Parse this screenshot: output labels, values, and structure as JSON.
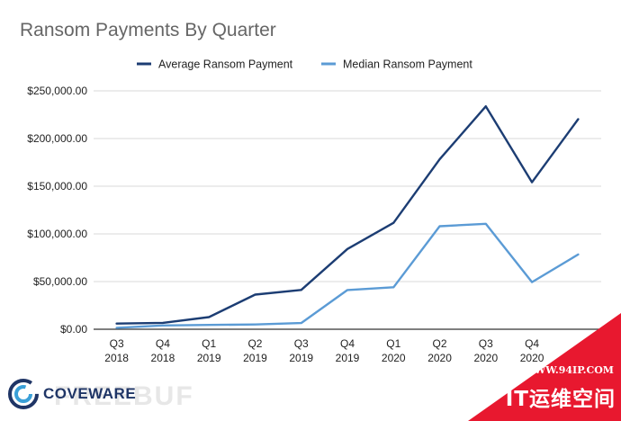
{
  "chart_data": {
    "type": "line",
    "title": "Ransom Payments By Quarter",
    "xlabel": "",
    "ylabel": "",
    "categories": [
      [
        "Q3",
        "2018"
      ],
      [
        "Q4",
        "2018"
      ],
      [
        "Q1",
        "2019"
      ],
      [
        "Q2",
        "2019"
      ],
      [
        "Q3",
        "2019"
      ],
      [
        "Q4",
        "2019"
      ],
      [
        "Q1",
        "2020"
      ],
      [
        "Q2",
        "2020"
      ],
      [
        "Q3",
        "2020"
      ],
      [
        "Q4",
        "2020"
      ],
      [
        "",
        ""
      ]
    ],
    "ylim": [
      0,
      250000
    ],
    "yticks": [
      0,
      50000,
      100000,
      150000,
      200000,
      250000
    ],
    "ytick_labels": [
      "$0.00",
      "$50,000.00",
      "$100,000.00",
      "$150,000.00",
      "$200,000.00",
      "$250,000.00"
    ],
    "grid": true,
    "legend_position": "top",
    "series": [
      {
        "name": "Average Ransom Payment",
        "color": "#1c3d73",
        "values": [
          5973,
          6733,
          12762,
          36295,
          41198,
          84116,
          111605,
          178254,
          233817,
          154108,
          220298
        ]
      },
      {
        "name": "Median Ransom Payment",
        "color": "#5b9bd5",
        "values": [
          1500,
          4000,
          4500,
          5000,
          6500,
          41179,
          44021,
          108000,
          110532,
          49450,
          78398
        ]
      }
    ]
  },
  "logo": {
    "text": "COVEWARE"
  },
  "watermark": {
    "faint_text": "FREEBUF",
    "url": "WWW.94IP.COM",
    "name": "IT运维空间"
  },
  "colors": {
    "gridline": "#d9d9d9",
    "badge": "#e8182f"
  }
}
